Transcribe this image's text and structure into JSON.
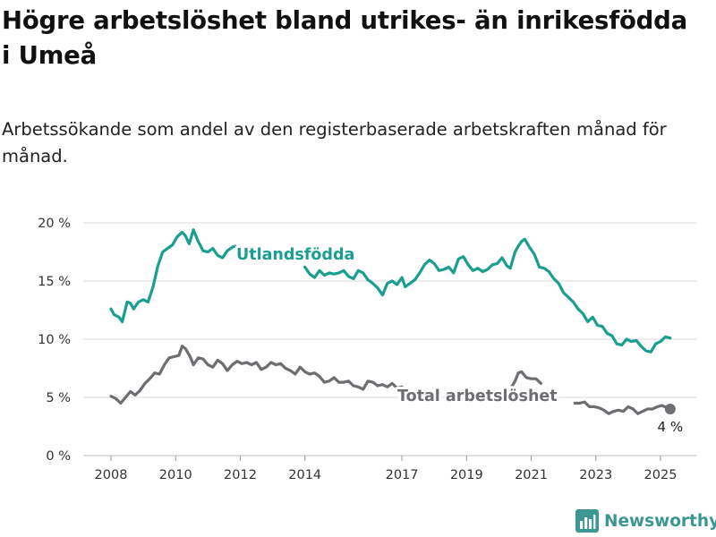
{
  "title": "Högre arbetslöshet bland utrikes- än inrikesfödda i Umeå",
  "subtitle": "Arbetssökande som andel av den registerbaserade arbetskraften månad för månad.",
  "brand": "Newsworthy",
  "colors": {
    "utrikes": "#1a9e8f",
    "total": "#6d6d72",
    "grid": "#d9d9d9",
    "brand": "#3c9691"
  },
  "chart_data": {
    "type": "line",
    "xlabel": "",
    "ylabel": "",
    "ylim": [
      0,
      20
    ],
    "xlim": [
      2007.95,
      2025.33
    ],
    "grid": true,
    "y_ticks": [
      0,
      5,
      10,
      15,
      20
    ],
    "y_tick_labels": [
      "0 %",
      "5 %",
      "10 %",
      "15 %",
      "20 %"
    ],
    "x_ticks": [
      2008,
      2010,
      2012,
      2014,
      2017,
      2019,
      2021,
      2023,
      2025
    ],
    "x_tick_labels": [
      "2008",
      "2010",
      "2012",
      "2014",
      "2017",
      "2019",
      "2021",
      "2023",
      "2025"
    ],
    "series": [
      {
        "name": "Utlandsfödda",
        "segments": [
          [
            [
              2008.0,
              12.6
            ],
            [
              2008.1,
              12.1
            ],
            [
              2008.25,
              11.9
            ],
            [
              2008.35,
              11.5
            ],
            [
              2008.5,
              13.2
            ],
            [
              2008.6,
              13.1
            ],
            [
              2008.7,
              12.6
            ],
            [
              2008.85,
              13.2
            ],
            [
              2009.0,
              13.4
            ],
            [
              2009.15,
              13.2
            ],
            [
              2009.3,
              14.5
            ],
            [
              2009.45,
              16.3
            ],
            [
              2009.6,
              17.5
            ],
            [
              2009.75,
              17.8
            ],
            [
              2009.9,
              18.1
            ],
            [
              2010.05,
              18.8
            ],
            [
              2010.2,
              19.2
            ],
            [
              2010.3,
              18.9
            ],
            [
              2010.42,
              18.2
            ],
            [
              2010.55,
              19.4
            ],
            [
              2010.7,
              18.4
            ],
            [
              2010.85,
              17.6
            ],
            [
              2011.0,
              17.5
            ],
            [
              2011.15,
              17.8
            ],
            [
              2011.3,
              17.2
            ],
            [
              2011.45,
              17.0
            ],
            [
              2011.6,
              17.6
            ],
            [
              2011.75,
              17.9
            ],
            [
              2011.85,
              18.0
            ]
          ],
          [
            [
              2014.0,
              16.2
            ],
            [
              2014.15,
              15.6
            ],
            [
              2014.3,
              15.3
            ],
            [
              2014.45,
              15.9
            ],
            [
              2014.6,
              15.5
            ],
            [
              2014.75,
              15.7
            ],
            [
              2014.9,
              15.6
            ],
            [
              2015.05,
              15.7
            ],
            [
              2015.2,
              15.9
            ],
            [
              2015.35,
              15.4
            ],
            [
              2015.5,
              15.2
            ],
            [
              2015.65,
              15.9
            ],
            [
              2015.8,
              15.7
            ],
            [
              2015.95,
              15.1
            ],
            [
              2016.1,
              14.8
            ],
            [
              2016.25,
              14.4
            ],
            [
              2016.4,
              13.8
            ],
            [
              2016.55,
              14.8
            ],
            [
              2016.7,
              15.0
            ],
            [
              2016.85,
              14.7
            ],
            [
              2017.0,
              15.3
            ],
            [
              2017.1,
              14.5
            ],
            [
              2017.25,
              14.8
            ],
            [
              2017.4,
              15.1
            ],
            [
              2017.55,
              15.7
            ],
            [
              2017.7,
              16.4
            ],
            [
              2017.85,
              16.8
            ],
            [
              2018.0,
              16.5
            ],
            [
              2018.15,
              15.9
            ],
            [
              2018.3,
              16.0
            ],
            [
              2018.45,
              16.2
            ],
            [
              2018.6,
              15.7
            ],
            [
              2018.75,
              16.9
            ],
            [
              2018.9,
              17.1
            ],
            [
              2019.05,
              16.4
            ],
            [
              2019.2,
              15.9
            ],
            [
              2019.35,
              16.1
            ],
            [
              2019.5,
              15.8
            ],
            [
              2019.65,
              16.0
            ],
            [
              2019.8,
              16.4
            ],
            [
              2019.95,
              16.5
            ],
            [
              2020.1,
              17.0
            ],
            [
              2020.25,
              16.3
            ],
            [
              2020.35,
              16.1
            ],
            [
              2020.5,
              17.5
            ],
            [
              2020.6,
              18.0
            ],
            [
              2020.7,
              18.4
            ],
            [
              2020.8,
              18.6
            ],
            [
              2020.95,
              17.9
            ],
            [
              2021.1,
              17.3
            ],
            [
              2021.25,
              16.2
            ],
            [
              2021.4,
              16.1
            ],
            [
              2021.55,
              15.8
            ],
            [
              2021.7,
              15.2
            ],
            [
              2021.85,
              14.8
            ],
            [
              2022.0,
              14.0
            ],
            [
              2022.15,
              13.6
            ],
            [
              2022.3,
              13.2
            ],
            [
              2022.45,
              12.6
            ],
            [
              2022.6,
              12.2
            ],
            [
              2022.75,
              11.5
            ],
            [
              2022.9,
              11.9
            ],
            [
              2023.05,
              11.2
            ],
            [
              2023.2,
              11.1
            ],
            [
              2023.35,
              10.5
            ],
            [
              2023.5,
              10.3
            ],
            [
              2023.65,
              9.6
            ],
            [
              2023.8,
              9.5
            ],
            [
              2023.95,
              10.0
            ],
            [
              2024.1,
              9.8
            ],
            [
              2024.25,
              9.9
            ],
            [
              2024.4,
              9.4
            ],
            [
              2024.55,
              9.0
            ],
            [
              2024.7,
              8.9
            ],
            [
              2024.85,
              9.6
            ],
            [
              2025.0,
              9.8
            ],
            [
              2025.15,
              10.2
            ],
            [
              2025.3,
              10.1
            ]
          ]
        ]
      },
      {
        "name": "Total arbetslöshet",
        "end_value": 4,
        "end_label": "4 %",
        "segments": [
          [
            [
              2008.0,
              5.1
            ],
            [
              2008.15,
              4.9
            ],
            [
              2008.3,
              4.5
            ],
            [
              2008.45,
              5.0
            ],
            [
              2008.6,
              5.5
            ],
            [
              2008.75,
              5.2
            ],
            [
              2008.9,
              5.6
            ],
            [
              2009.05,
              6.2
            ],
            [
              2009.2,
              6.6
            ],
            [
              2009.35,
              7.1
            ],
            [
              2009.5,
              7.0
            ],
            [
              2009.65,
              7.8
            ],
            [
              2009.8,
              8.4
            ],
            [
              2009.95,
              8.5
            ],
            [
              2010.1,
              8.6
            ],
            [
              2010.2,
              9.4
            ],
            [
              2010.3,
              9.2
            ],
            [
              2010.45,
              8.5
            ],
            [
              2010.55,
              7.8
            ],
            [
              2010.7,
              8.4
            ],
            [
              2010.85,
              8.3
            ],
            [
              2011.0,
              7.8
            ],
            [
              2011.15,
              7.6
            ],
            [
              2011.3,
              8.2
            ],
            [
              2011.45,
              7.9
            ],
            [
              2011.6,
              7.3
            ],
            [
              2011.75,
              7.8
            ],
            [
              2011.9,
              8.1
            ],
            [
              2012.05,
              7.9
            ],
            [
              2012.2,
              8.0
            ],
            [
              2012.35,
              7.8
            ],
            [
              2012.5,
              8.0
            ],
            [
              2012.65,
              7.4
            ],
            [
              2012.8,
              7.6
            ],
            [
              2012.95,
              8.0
            ],
            [
              2013.1,
              7.8
            ],
            [
              2013.25,
              7.9
            ],
            [
              2013.4,
              7.5
            ],
            [
              2013.55,
              7.3
            ],
            [
              2013.7,
              7.0
            ],
            [
              2013.85,
              7.6
            ],
            [
              2014.0,
              7.2
            ],
            [
              2014.15,
              7.0
            ],
            [
              2014.3,
              7.1
            ],
            [
              2014.45,
              6.8
            ],
            [
              2014.6,
              6.3
            ],
            [
              2014.75,
              6.4
            ],
            [
              2014.9,
              6.7
            ],
            [
              2015.05,
              6.3
            ],
            [
              2015.2,
              6.3
            ],
            [
              2015.35,
              6.4
            ],
            [
              2015.5,
              6.0
            ],
            [
              2015.65,
              5.9
            ],
            [
              2015.8,
              5.7
            ],
            [
              2015.95,
              6.4
            ],
            [
              2016.1,
              6.3
            ],
            [
              2016.25,
              6.0
            ],
            [
              2016.4,
              6.1
            ],
            [
              2016.55,
              5.9
            ],
            [
              2016.7,
              6.2
            ],
            [
              2016.85,
              5.8
            ],
            [
              2017.0,
              5.9
            ],
            [
              2017.15,
              5.2
            ],
            [
              2017.3,
              5.4
            ],
            [
              2017.45,
              5.4
            ]
          ],
          [
            [
              2020.35,
              5.7
            ],
            [
              2020.5,
              6.4
            ],
            [
              2020.6,
              7.1
            ],
            [
              2020.7,
              7.2
            ],
            [
              2020.85,
              6.7
            ],
            [
              2021.0,
              6.6
            ],
            [
              2021.15,
              6.6
            ],
            [
              2021.3,
              6.2
            ]
          ],
          [
            [
              2022.35,
              4.5
            ],
            [
              2022.5,
              4.5
            ],
            [
              2022.65,
              4.6
            ],
            [
              2022.8,
              4.2
            ],
            [
              2022.95,
              4.2
            ],
            [
              2023.1,
              4.1
            ],
            [
              2023.25,
              3.9
            ],
            [
              2023.4,
              3.6
            ],
            [
              2023.55,
              3.8
            ],
            [
              2023.7,
              3.9
            ],
            [
              2023.85,
              3.8
            ],
            [
              2024.0,
              4.2
            ],
            [
              2024.15,
              4.0
            ],
            [
              2024.3,
              3.6
            ],
            [
              2024.45,
              3.8
            ],
            [
              2024.6,
              4.0
            ],
            [
              2024.75,
              4.0
            ],
            [
              2024.9,
              4.2
            ],
            [
              2025.05,
              4.3
            ],
            [
              2025.3,
              4.0
            ]
          ]
        ]
      }
    ]
  }
}
